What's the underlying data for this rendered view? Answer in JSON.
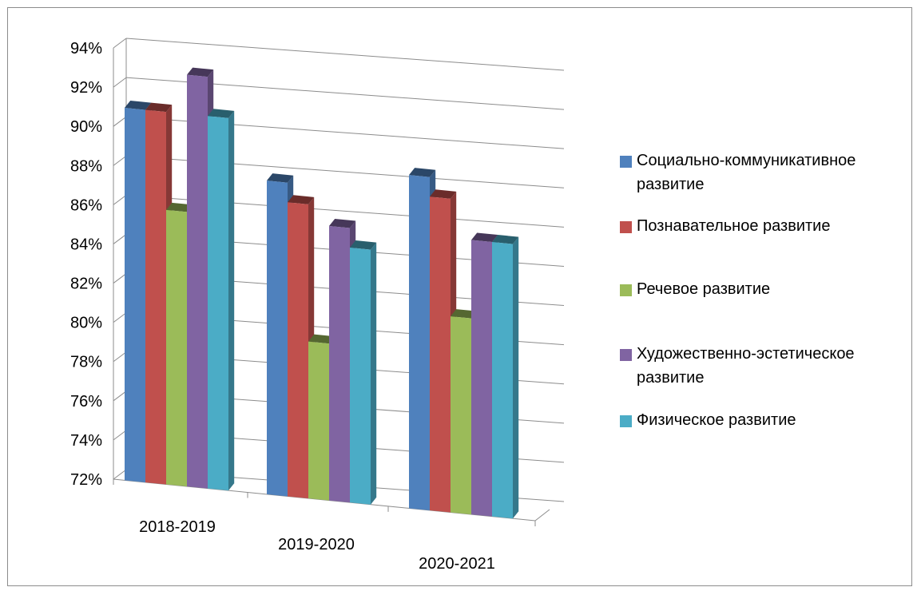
{
  "chart_data": {
    "type": "bar",
    "title": "",
    "xlabel": "",
    "ylabel": "",
    "ylim": [
      72,
      94
    ],
    "y_ticks": [
      "72%",
      "74%",
      "76%",
      "78%",
      "80%",
      "82%",
      "84%",
      "86%",
      "88%",
      "90%",
      "92%",
      "94%"
    ],
    "categories": [
      "2018-2019",
      "2019-2020",
      "2020-2021"
    ],
    "series": [
      {
        "name": "Социально-коммуникативное развитие",
        "color": "#4f81bd",
        "values": [
          91,
          88,
          89
        ]
      },
      {
        "name": "Познавательное развитие",
        "color": "#c0504d",
        "values": [
          91,
          87,
          88
        ]
      },
      {
        "name": "Речевое развитие",
        "color": "#9bbb59",
        "values": [
          86,
          80,
          82
        ]
      },
      {
        "name": "Художественно-эстетическое развитие",
        "color": "#8064a2",
        "values": [
          93,
          86,
          86
        ]
      },
      {
        "name": "Физическое развитие",
        "color": "#4bacc6",
        "values": [
          91,
          85,
          86
        ]
      }
    ],
    "legend_position": "right",
    "grid": true,
    "style": "3d-clustered-column"
  }
}
